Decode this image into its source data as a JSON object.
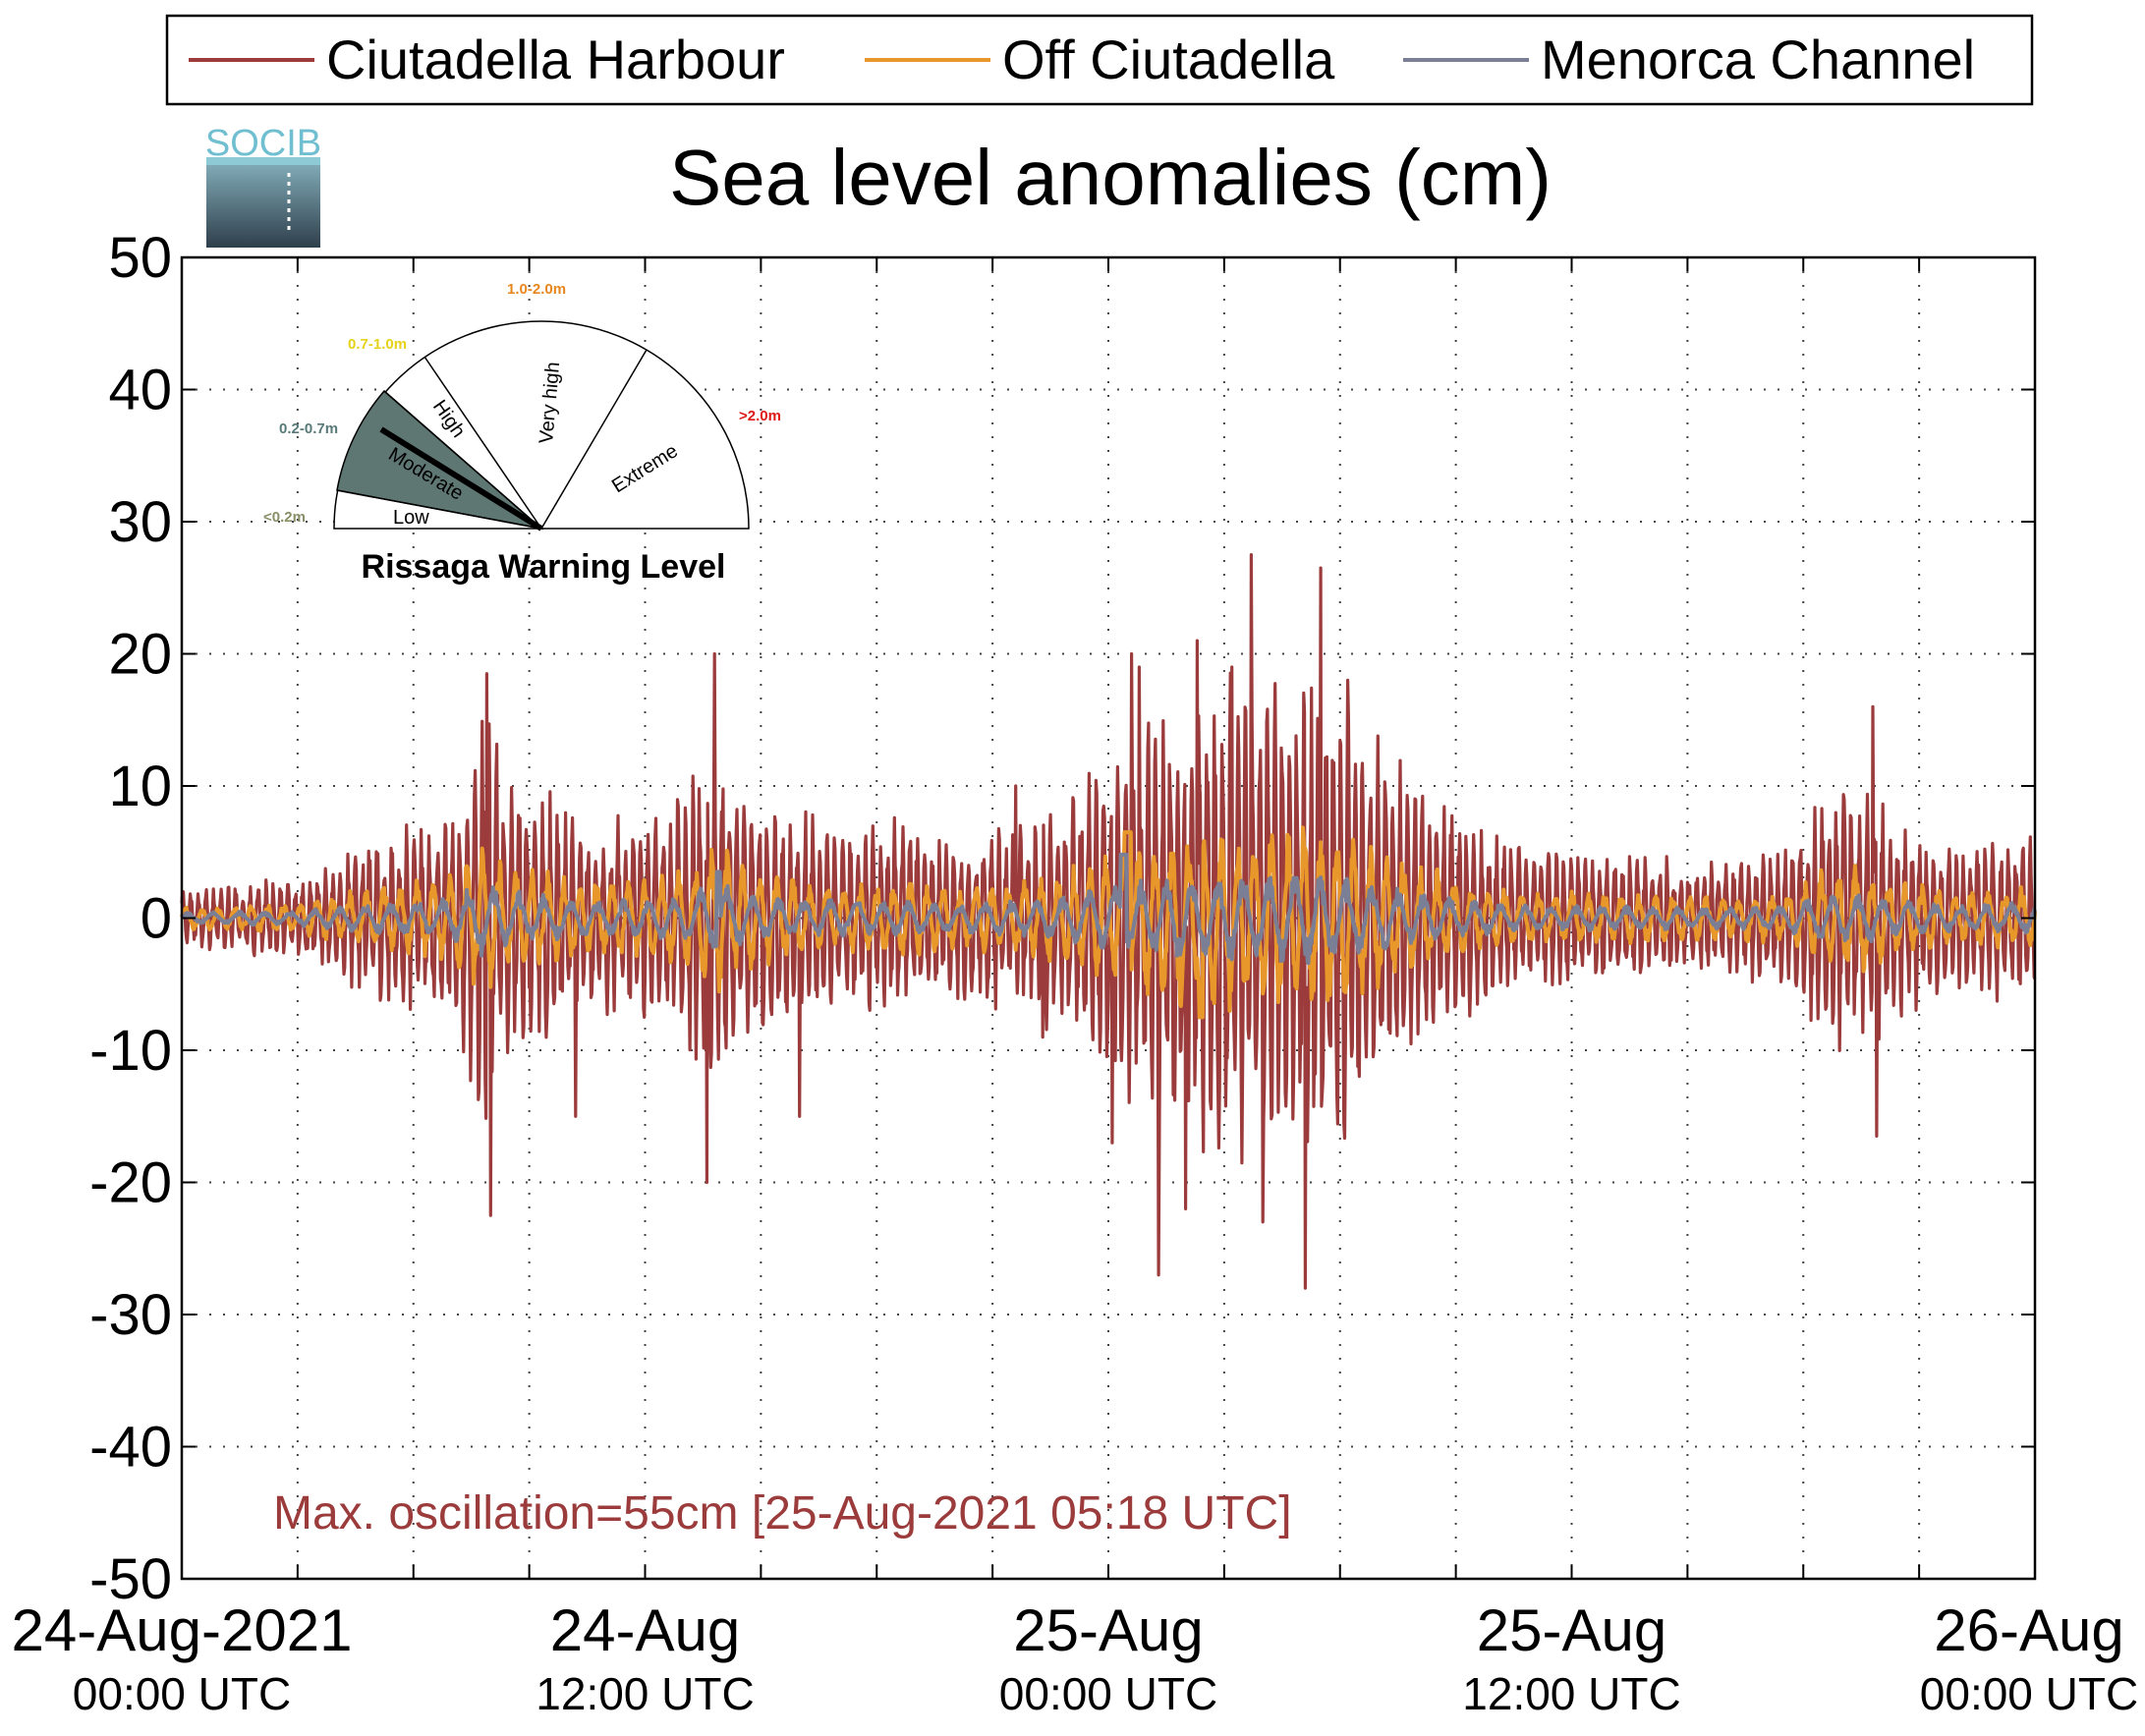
{
  "chart_data": {
    "type": "line",
    "title": "Sea level anomalies (cm)",
    "ylim": [
      -50,
      50
    ],
    "yticks": [
      -50,
      -40,
      -30,
      -20,
      -10,
      0,
      10,
      20,
      30,
      40,
      50
    ],
    "xlim_hours": [
      0,
      48
    ],
    "xticks_minor_hours": [
      0,
      3,
      6,
      9,
      12,
      15,
      18,
      21,
      24,
      27,
      30,
      33,
      36,
      39,
      42,
      45,
      48
    ],
    "xtick_labels": [
      {
        "hour": 0,
        "line1": "24-Aug-2021",
        "line2": "00:00 UTC"
      },
      {
        "hour": 12,
        "line1": "24-Aug",
        "line2": "12:00 UTC"
      },
      {
        "hour": 24,
        "line1": "25-Aug",
        "line2": "00:00 UTC"
      },
      {
        "hour": 36,
        "line1": "25-Aug",
        "line2": "12:00 UTC"
      },
      {
        "hour": 48,
        "line1": "26-Aug",
        "line2": "00:00 UTC"
      }
    ],
    "grid": true,
    "legend_position": "top",
    "series": [
      {
        "name": "Ciutadella Harbour",
        "color": "#9b3b3b",
        "peak_max": 27.5,
        "peak_min": -28
      },
      {
        "name": "Off Ciutadella",
        "color": "#e8982a",
        "peak_max": 7,
        "peak_min": -8
      },
      {
        "name": "Menorca Channel",
        "color": "#7a7f96",
        "peak_max": 5,
        "peak_min": -4
      }
    ],
    "annotation": "Max. oscillation=55cm [25-Aug-2021 05:18 UTC]",
    "annotation_color": "#9b3b3b"
  },
  "logo": {
    "text": "SOCIB"
  },
  "gauge": {
    "title": "Rissaga Warning Level",
    "level": "Moderate",
    "sectors": [
      {
        "label": "Low",
        "range": "<0.2m",
        "range_color": "#8a8f68"
      },
      {
        "label": "Moderate",
        "range": "0.2-0.7m",
        "range_color": "#5a7a7a"
      },
      {
        "label": "High",
        "range": "0.7-1.0m",
        "range_color": "#e6d21a"
      },
      {
        "label": "Very high",
        "range": "1.0-2.0m",
        "range_color": "#e8871e"
      },
      {
        "label": "Extreme",
        "range": ">2.0m",
        "range_color": "#e01818"
      }
    ]
  }
}
